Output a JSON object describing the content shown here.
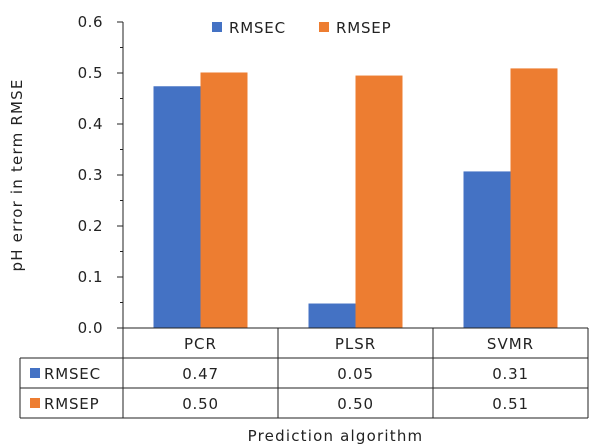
{
  "chart_data": {
    "type": "bar",
    "categories": [
      "PCR",
      "PLSR",
      "SVMR"
    ],
    "series": [
      {
        "name": "RMSEC",
        "values": [
          0.474,
          0.048,
          0.307
        ],
        "table_values": [
          "0.47",
          "0.05",
          "0.31"
        ],
        "color": "#4472C4"
      },
      {
        "name": "RMSEP",
        "values": [
          0.501,
          0.495,
          0.509
        ],
        "table_values": [
          "0.50",
          "0.50",
          "0.51"
        ],
        "color": "#ED7D31"
      }
    ],
    "title": "",
    "xlabel": "Prediction algorithm",
    "ylabel": "pH error in term RMSE",
    "ylim": [
      0,
      0.6
    ],
    "yticks": [
      "0.0",
      "0.1",
      "0.2",
      "0.3",
      "0.4",
      "0.5",
      "0.6"
    ],
    "grid": false,
    "legend": "top-center",
    "data_table": true
  }
}
